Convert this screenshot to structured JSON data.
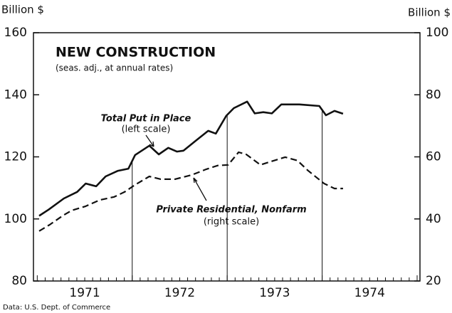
{
  "chart_data": {
    "type": "line",
    "title": "NEW CONSTRUCTION",
    "subtitle": "(seas. adj., at annual rates)",
    "y_label": "Billion $",
    "y2_label": "Billion $",
    "source": "Data:  U.S. Dept. of Commerce",
    "xlim": [
      1970.96,
      1975.03
    ],
    "xticks": [
      {
        "value": 1971.5,
        "label": "1971"
      },
      {
        "value": 1972.5,
        "label": "1972"
      },
      {
        "value": 1973.5,
        "label": "1973"
      },
      {
        "value": 1974.5,
        "label": "1974"
      }
    ],
    "ylim": [
      80,
      160
    ],
    "yticks": [
      80,
      100,
      120,
      140,
      160
    ],
    "y2lim": [
      20,
      100
    ],
    "y2ticks": [
      20,
      40,
      60,
      80,
      100
    ],
    "vertical_lines": [
      1972,
      1973,
      1974
    ],
    "series": [
      {
        "name": "Total Put in Place",
        "note": "(left scale)",
        "color": "#111111",
        "dash": false,
        "x": [
          1971.02,
          1971.12,
          1971.28,
          1971.42,
          1971.51,
          1971.62,
          1971.72,
          1971.85,
          1971.96,
          1972.03,
          1972.18,
          1972.28,
          1972.38,
          1972.47,
          1972.54,
          1972.67,
          1972.8,
          1972.88,
          1972.99,
          1973.07,
          1973.21,
          1973.29,
          1973.38,
          1973.47,
          1973.57,
          1973.76,
          1973.97,
          1974.04,
          1974.13,
          1974.22
        ],
        "values": [
          101,
          103,
          106.6,
          108.7,
          111.4,
          110.5,
          113.7,
          115.5,
          116.2,
          120.6,
          123.6,
          120.8,
          122.9,
          121.7,
          122,
          125.2,
          128.4,
          127.5,
          133.2,
          135.7,
          137.8,
          134,
          134.4,
          134,
          136.9,
          136.9,
          136.4,
          133.4,
          134.8,
          133.9
        ]
      },
      {
        "name": "Private Residential, Nonfarm",
        "note": "(right scale)",
        "color": "#111111",
        "dash": true,
        "axis": "y2",
        "x": [
          1971.02,
          1971.13,
          1971.27,
          1971.36,
          1971.51,
          1971.66,
          1971.81,
          1971.92,
          1972.03,
          1972.18,
          1972.3,
          1972.45,
          1972.63,
          1972.78,
          1972.9,
          1973.01,
          1973.12,
          1973.2,
          1973.35,
          1973.44,
          1973.61,
          1973.74,
          1973.85,
          1974.02,
          1974.13,
          1974.22
        ],
        "values": [
          36.1,
          38.1,
          41.1,
          42.7,
          44.1,
          46.1,
          47.1,
          48.7,
          51,
          53.7,
          52.8,
          52.8,
          54.2,
          56,
          57.2,
          57.4,
          61.5,
          60.8,
          57.4,
          58.3,
          59.9,
          58.8,
          55.6,
          51.4,
          49.8,
          49.8
        ]
      }
    ]
  }
}
